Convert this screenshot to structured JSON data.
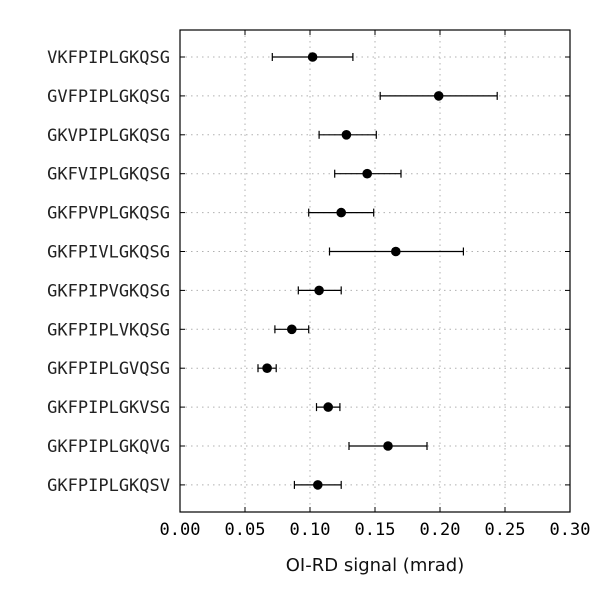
{
  "chart_data": {
    "type": "scatter",
    "orientation": "horizontal",
    "title": "",
    "xlabel": "OI-RD signal (mrad)",
    "ylabel": "",
    "xlim": [
      0.0,
      0.3
    ],
    "xticks": [
      "0.00",
      "0.05",
      "0.10",
      "0.15",
      "0.20",
      "0.25",
      "0.30"
    ],
    "xtick_values": [
      0.0,
      0.05,
      0.1,
      0.15,
      0.2,
      0.25,
      0.3
    ],
    "grid": true,
    "categories": [
      "VKFPIPLGKQSG",
      "GVFPIPLGKQSG",
      "GKVPIPLGKQSG",
      "GKFVIPLGKQSG",
      "GKFPVPLGKQSG",
      "GKFPIVLGKQSG",
      "GKFPIPVGKQSG",
      "GKFPIPLVKQSG",
      "GKFPIPLGVQSG",
      "GKFPIPLGKVSG",
      "GKFPIPLGKQVG",
      "GKFPIPLGKQSV"
    ],
    "values": [
      0.102,
      0.199,
      0.128,
      0.144,
      0.124,
      0.166,
      0.107,
      0.086,
      0.067,
      0.114,
      0.16,
      0.106
    ],
    "err_low": [
      0.071,
      0.154,
      0.107,
      0.119,
      0.099,
      0.115,
      0.091,
      0.073,
      0.06,
      0.105,
      0.13,
      0.088
    ],
    "err_high": [
      0.133,
      0.244,
      0.151,
      0.17,
      0.149,
      0.218,
      0.124,
      0.099,
      0.074,
      0.123,
      0.19,
      0.124
    ],
    "marker_color": "#000000"
  }
}
